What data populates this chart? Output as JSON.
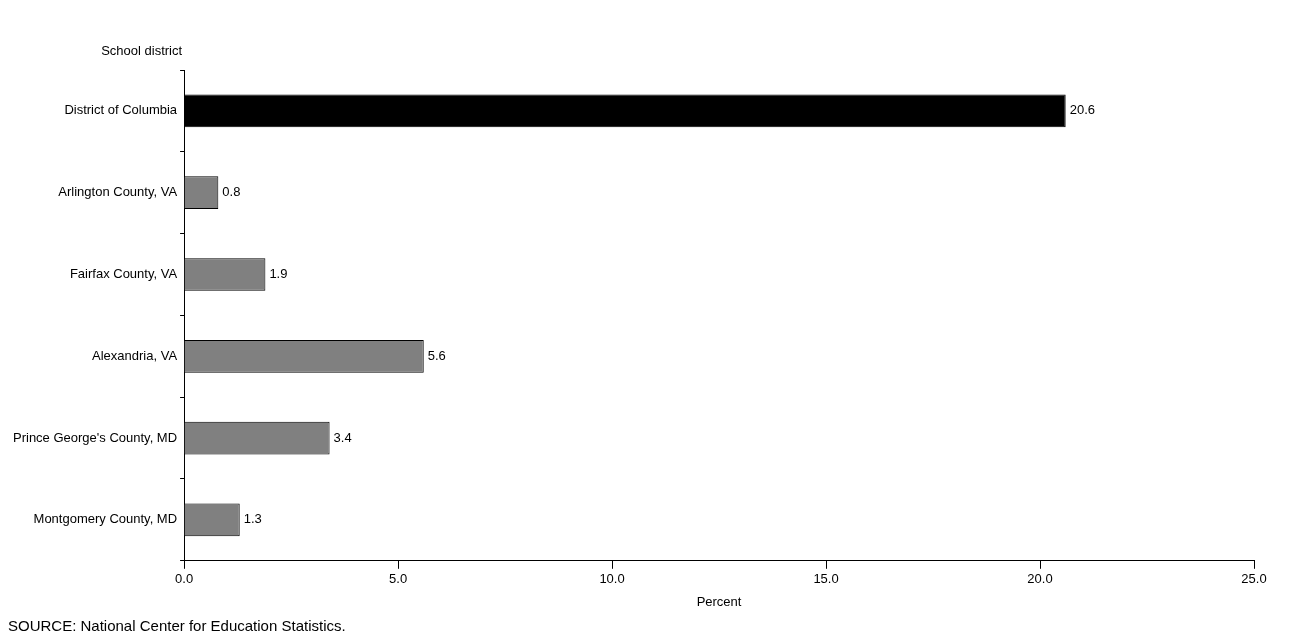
{
  "chart_data": {
    "type": "bar",
    "orientation": "horizontal",
    "ylabel": "School district",
    "xlabel": "Percent",
    "categories": [
      "District of Columbia",
      "Arlington County, VA",
      "Fairfax County, VA",
      "Alexandria, VA",
      "Prince George's County, MD",
      "Montgomery County, MD"
    ],
    "values": [
      20.6,
      0.8,
      1.9,
      5.6,
      3.4,
      1.3
    ],
    "colors": [
      "#000000",
      "#808080",
      "#808080",
      "#808080",
      "#808080",
      "#808080"
    ],
    "xlim": [
      0,
      25
    ],
    "xticks": [
      {
        "value": 0,
        "label": "0.0"
      },
      {
        "value": 5,
        "label": "5.0"
      },
      {
        "value": 10,
        "label": "10.0"
      },
      {
        "value": 15,
        "label": "15.0"
      },
      {
        "value": 20,
        "label": "20.0"
      },
      {
        "value": 25,
        "label": "25.0"
      }
    ],
    "data_labels": true,
    "grid": false,
    "legend": false,
    "annotations": [
      "SOURCE: National Center for Education Statistics."
    ]
  }
}
